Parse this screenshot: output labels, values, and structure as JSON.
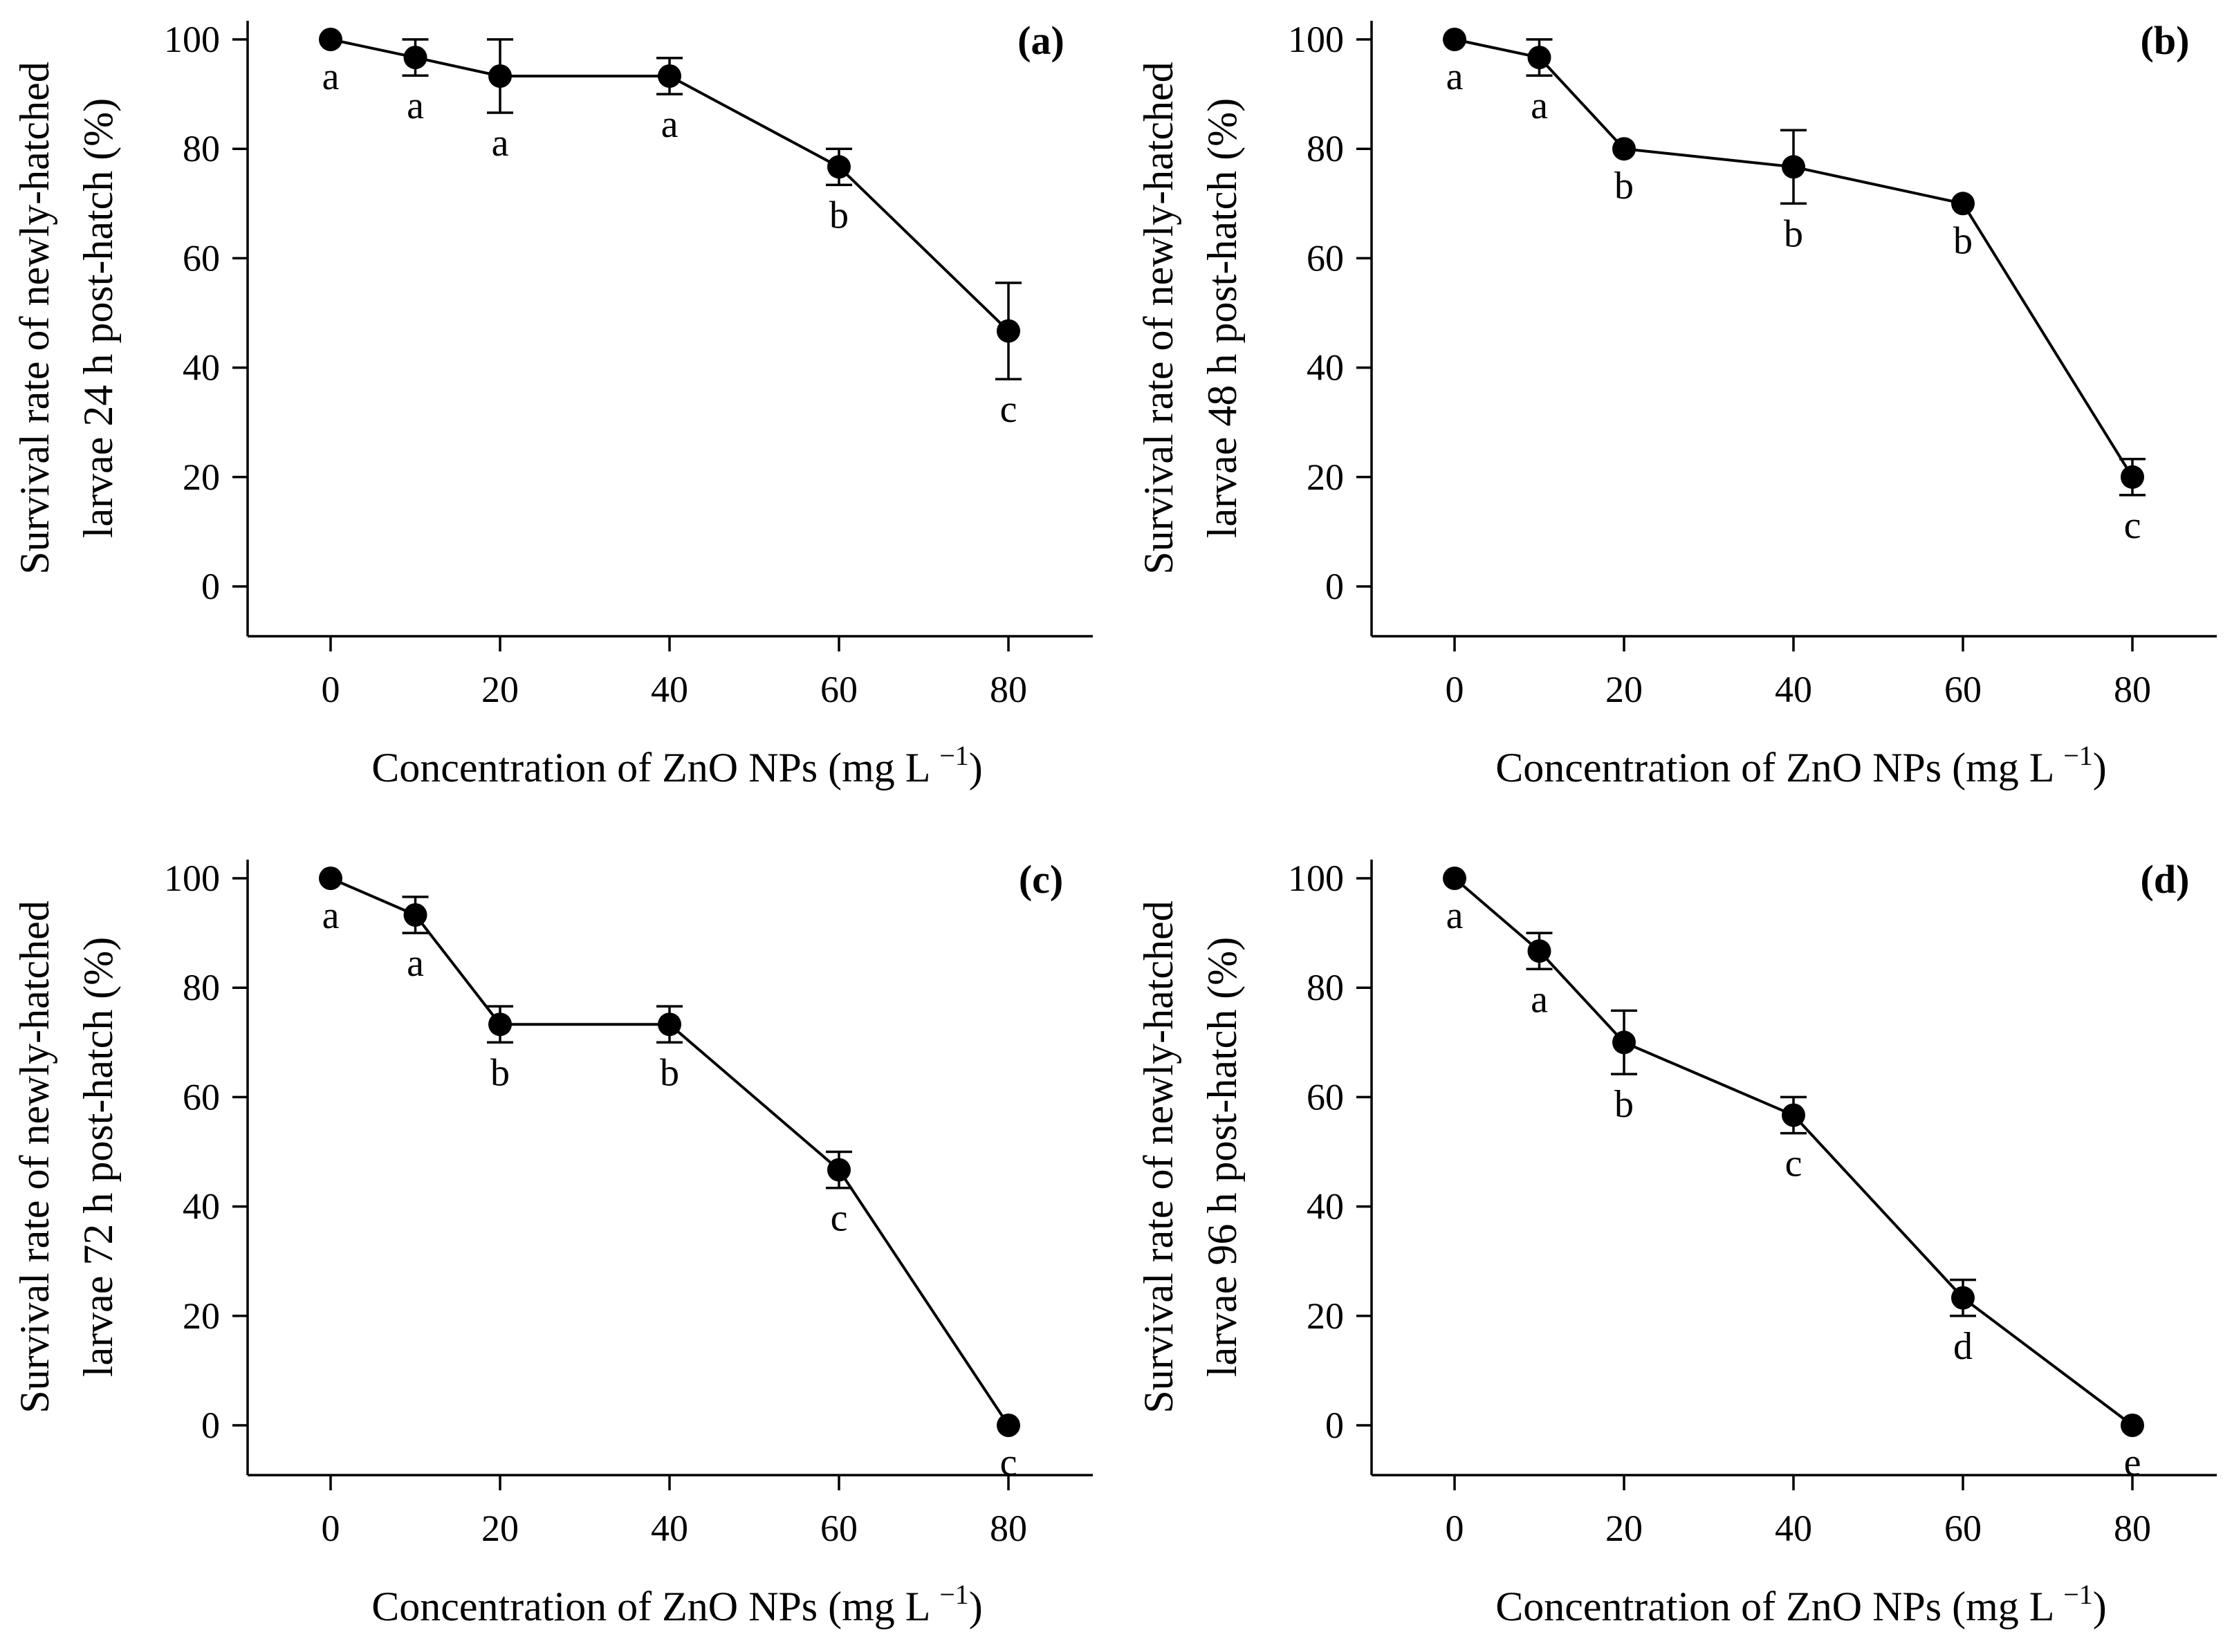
{
  "chart_data": [
    {
      "type": "line",
      "panel_label": "(a)",
      "xlabel": "Concentration of ZnO NPs (mg L",
      "xlabel_sup": "−1",
      "xlabel_close": ")",
      "ylabel_line1": "Survival rate of newly-hatched",
      "ylabel_line2": "larvae 24 h post-hatch (%)",
      "x": [
        0,
        10,
        20,
        40,
        60,
        80
      ],
      "y": [
        100,
        96.7,
        93.3,
        93.3,
        76.7,
        46.7
      ],
      "err": [
        0,
        3.3,
        6.7,
        3.3,
        3.3,
        8.8
      ],
      "letters": [
        "a",
        "a",
        "a",
        "a",
        "b",
        "c"
      ],
      "xlim": [
        -10,
        90
      ],
      "ylim": [
        -9,
        100
      ],
      "xticks": [
        0,
        20,
        40,
        60,
        80
      ],
      "yticks": [
        0,
        20,
        40,
        60,
        80,
        100
      ]
    },
    {
      "type": "line",
      "panel_label": "(b)",
      "xlabel": "Concentration of ZnO NPs (mg L",
      "xlabel_sup": "−1",
      "xlabel_close": ")",
      "ylabel_line1": "Survival rate of newly-hatched",
      "ylabel_line2": "larvae 48 h post-hatch (%)",
      "x": [
        0,
        10,
        20,
        40,
        60,
        80
      ],
      "y": [
        100,
        96.7,
        80,
        76.7,
        70,
        20
      ],
      "err": [
        0,
        3.3,
        0,
        6.7,
        0,
        3.3
      ],
      "letters": [
        "a",
        "a",
        "b",
        "b",
        "b",
        "c"
      ],
      "xlim": [
        -10,
        90
      ],
      "ylim": [
        -9,
        100
      ],
      "xticks": [
        0,
        20,
        40,
        60,
        80
      ],
      "yticks": [
        0,
        20,
        40,
        60,
        80,
        100
      ]
    },
    {
      "type": "line",
      "panel_label": "(c)",
      "xlabel": "Concentration of ZnO NPs (mg L",
      "xlabel_sup": "−1",
      "xlabel_close": ")",
      "ylabel_line1": "Survival rate of newly-hatched",
      "ylabel_line2": "larvae 72 h post-hatch (%)",
      "x": [
        0,
        10,
        20,
        40,
        60,
        80
      ],
      "y": [
        100,
        93.3,
        73.3,
        73.3,
        46.7,
        0
      ],
      "err": [
        0,
        3.3,
        3.3,
        3.3,
        3.3,
        0
      ],
      "letters": [
        "a",
        "a",
        "b",
        "b",
        "c",
        "c"
      ],
      "xlim": [
        -10,
        90
      ],
      "ylim": [
        -9,
        100
      ],
      "xticks": [
        0,
        20,
        40,
        60,
        80
      ],
      "yticks": [
        0,
        20,
        40,
        60,
        80,
        100
      ]
    },
    {
      "type": "line",
      "panel_label": "(d)",
      "xlabel": "Concentration of ZnO NPs (mg L",
      "xlabel_sup": "−1",
      "xlabel_close": ")",
      "ylabel_line1": "Survival rate of newly-hatched",
      "ylabel_line2": "larvae 96 h post-hatch (%)",
      "x": [
        0,
        10,
        20,
        40,
        60,
        80
      ],
      "y": [
        100,
        86.7,
        70,
        56.7,
        23.3,
        0
      ],
      "err": [
        0,
        3.3,
        5.8,
        3.3,
        3.3,
        0
      ],
      "letters": [
        "a",
        "a",
        "b",
        "c",
        "d",
        "e"
      ],
      "xlim": [
        -10,
        90
      ],
      "ylim": [
        -9,
        100
      ],
      "xticks": [
        0,
        20,
        40,
        60,
        80
      ],
      "yticks": [
        0,
        20,
        40,
        60,
        80,
        100
      ]
    }
  ]
}
